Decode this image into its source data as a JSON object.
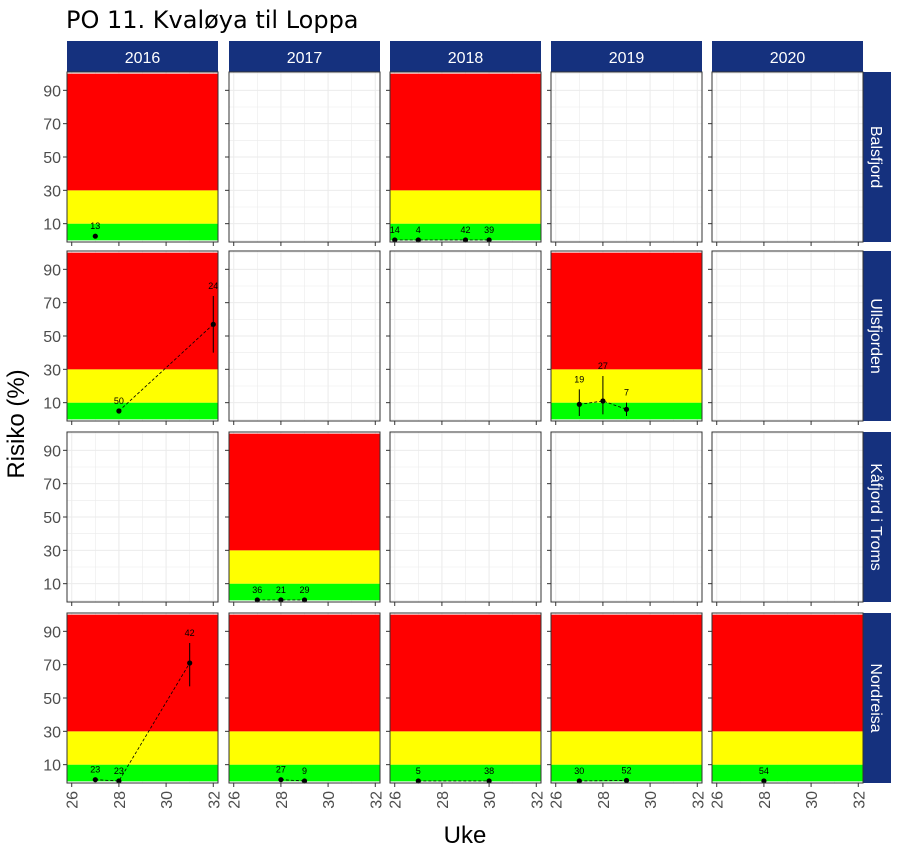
{
  "chart_data": {
    "type": "line",
    "title": "PO 11. Kvaløya til Loppa",
    "xlabel": "Uke",
    "ylabel": "Risiko (%)",
    "xlim": [
      25.8,
      32.2
    ],
    "ylim": [
      -1,
      101
    ],
    "xticks": [
      26,
      28,
      30,
      32
    ],
    "yticks": [
      10,
      30,
      50,
      70,
      90
    ],
    "years": [
      "2016",
      "2017",
      "2018",
      "2019",
      "2020"
    ],
    "regions": [
      "Balsfjord",
      "Ullsfjorden",
      "Kåfjord i Troms",
      "Nordreisa"
    ],
    "risk_bands": [
      {
        "name": "green",
        "from": 0,
        "to": 10,
        "color": "#00ff00"
      },
      {
        "name": "yellow",
        "from": 10,
        "to": 30,
        "color": "#ffff00"
      },
      {
        "name": "red",
        "from": 30,
        "to": 100,
        "color": "#ff0000"
      }
    ],
    "colors": {
      "strip": "#15317e",
      "grid": "#ebebeb",
      "point": "#000000"
    },
    "grid": true,
    "panels": [
      {
        "region": "Balsfjord",
        "year": "2016",
        "bands": true,
        "points": [
          {
            "x": 27,
            "y": 2.5,
            "label": "13"
          }
        ]
      },
      {
        "region": "Balsfjord",
        "year": "2017",
        "bands": false,
        "points": []
      },
      {
        "region": "Balsfjord",
        "year": "2018",
        "bands": true,
        "points": [
          {
            "x": 26,
            "y": 0.2,
            "label": "14"
          },
          {
            "x": 27,
            "y": 0.2,
            "label": "4"
          },
          {
            "x": 29,
            "y": 0.2,
            "label": "42"
          },
          {
            "x": 30,
            "y": 0.2,
            "label": "39"
          }
        ]
      },
      {
        "region": "Balsfjord",
        "year": "2019",
        "bands": false,
        "points": []
      },
      {
        "region": "Balsfjord",
        "year": "2020",
        "bands": false,
        "points": []
      },
      {
        "region": "Ullsfjorden",
        "year": "2016",
        "bands": true,
        "points": [
          {
            "x": 28,
            "y": 5,
            "label": "50"
          },
          {
            "x": 32,
            "y": 57,
            "label": "24",
            "err": [
              40,
              74
            ]
          }
        ]
      },
      {
        "region": "Ullsfjorden",
        "year": "2017",
        "bands": false,
        "points": []
      },
      {
        "region": "Ullsfjorden",
        "year": "2018",
        "bands": false,
        "points": []
      },
      {
        "region": "Ullsfjorden",
        "year": "2019",
        "bands": true,
        "points": [
          {
            "x": 27,
            "y": 9,
            "label": "19",
            "err": [
              2,
              18
            ]
          },
          {
            "x": 28,
            "y": 11,
            "label": "27",
            "err": [
              3,
              26
            ]
          },
          {
            "x": 29,
            "y": 6,
            "label": "7",
            "err": [
              2,
              10
            ]
          }
        ]
      },
      {
        "region": "Ullsfjorden",
        "year": "2020",
        "bands": false,
        "points": []
      },
      {
        "region": "Kåfjord i Troms",
        "year": "2016",
        "bands": false,
        "points": []
      },
      {
        "region": "Kåfjord i Troms",
        "year": "2017",
        "bands": true,
        "points": [
          {
            "x": 27,
            "y": 0.2,
            "label": "36"
          },
          {
            "x": 28,
            "y": 0.2,
            "label": "21"
          },
          {
            "x": 29,
            "y": 0.2,
            "label": "29"
          }
        ]
      },
      {
        "region": "Kåfjord i Troms",
        "year": "2018",
        "bands": false,
        "points": []
      },
      {
        "region": "Kåfjord i Troms",
        "year": "2019",
        "bands": false,
        "points": []
      },
      {
        "region": "Kåfjord i Troms",
        "year": "2020",
        "bands": false,
        "points": []
      },
      {
        "region": "Nordreisa",
        "year": "2016",
        "bands": true,
        "points": [
          {
            "x": 27,
            "y": 1,
            "label": "23"
          },
          {
            "x": 28,
            "y": 0.2,
            "label": "23"
          },
          {
            "x": 31,
            "y": 71,
            "label": "42",
            "err": [
              57,
              83
            ]
          }
        ]
      },
      {
        "region": "Nordreisa",
        "year": "2017",
        "bands": true,
        "points": [
          {
            "x": 28,
            "y": 1,
            "label": "27"
          },
          {
            "x": 29,
            "y": 0.2,
            "label": "9"
          }
        ]
      },
      {
        "region": "Nordreisa",
        "year": "2018",
        "bands": true,
        "points": [
          {
            "x": 27,
            "y": 0.2,
            "label": "5"
          },
          {
            "x": 30,
            "y": 0.2,
            "label": "38"
          }
        ]
      },
      {
        "region": "Nordreisa",
        "year": "2019",
        "bands": true,
        "points": [
          {
            "x": 27,
            "y": 0.2,
            "label": "30"
          },
          {
            "x": 29,
            "y": 0.5,
            "label": "52"
          }
        ]
      },
      {
        "region": "Nordreisa",
        "year": "2020",
        "bands": true,
        "points": [
          {
            "x": 28,
            "y": 0.2,
            "label": "54"
          }
        ]
      }
    ]
  }
}
